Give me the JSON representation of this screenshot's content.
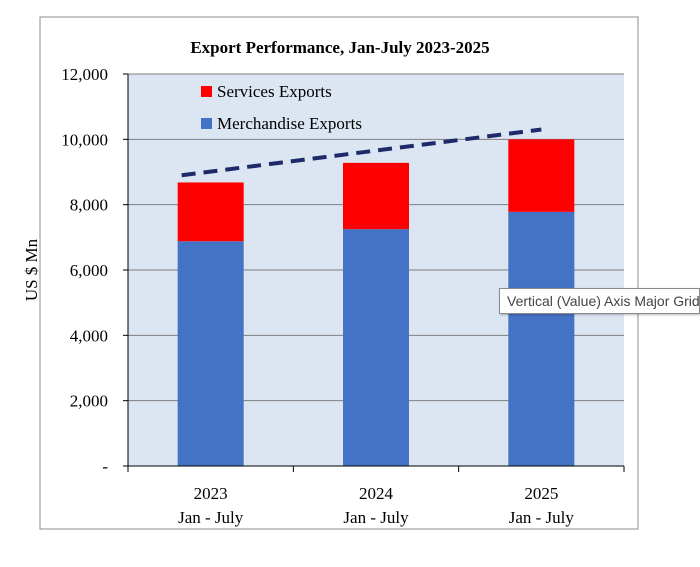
{
  "chart_data": {
    "type": "bar",
    "stacked": true,
    "title": "Export Performance, Jan-July 2023-2025",
    "xlabel": "",
    "ylabel": "US $ Mn",
    "ylim": [
      0,
      12000
    ],
    "yticks": [
      0,
      2000,
      4000,
      6000,
      8000,
      10000,
      12000
    ],
    "ytick_labels": [
      "-",
      "2,000",
      "4,000",
      "6,000",
      "8,000",
      "10,000",
      "12,000"
    ],
    "categories": [
      {
        "year": "2023",
        "period": "Jan - July"
      },
      {
        "year": "2024",
        "period": "Jan - July"
      },
      {
        "year": "2025",
        "period": "Jan - July"
      }
    ],
    "series": [
      {
        "name": "Merchandise Exports",
        "color": "#4472C4",
        "values": [
          6880,
          7250,
          7780
        ]
      },
      {
        "name": "Services Exports",
        "color": "#FF0000",
        "values": [
          1800,
          2030,
          2220
        ]
      }
    ],
    "trendline": {
      "style": "dashed",
      "color": "#1F2A6B",
      "start_value": 8900,
      "end_value": 10300
    },
    "legend": {
      "position": "top-left-inside"
    },
    "grid": true,
    "plot_background": "#DCE6F2"
  },
  "tooltip": {
    "text": "Vertical (Value) Axis Major Gridlines"
  }
}
